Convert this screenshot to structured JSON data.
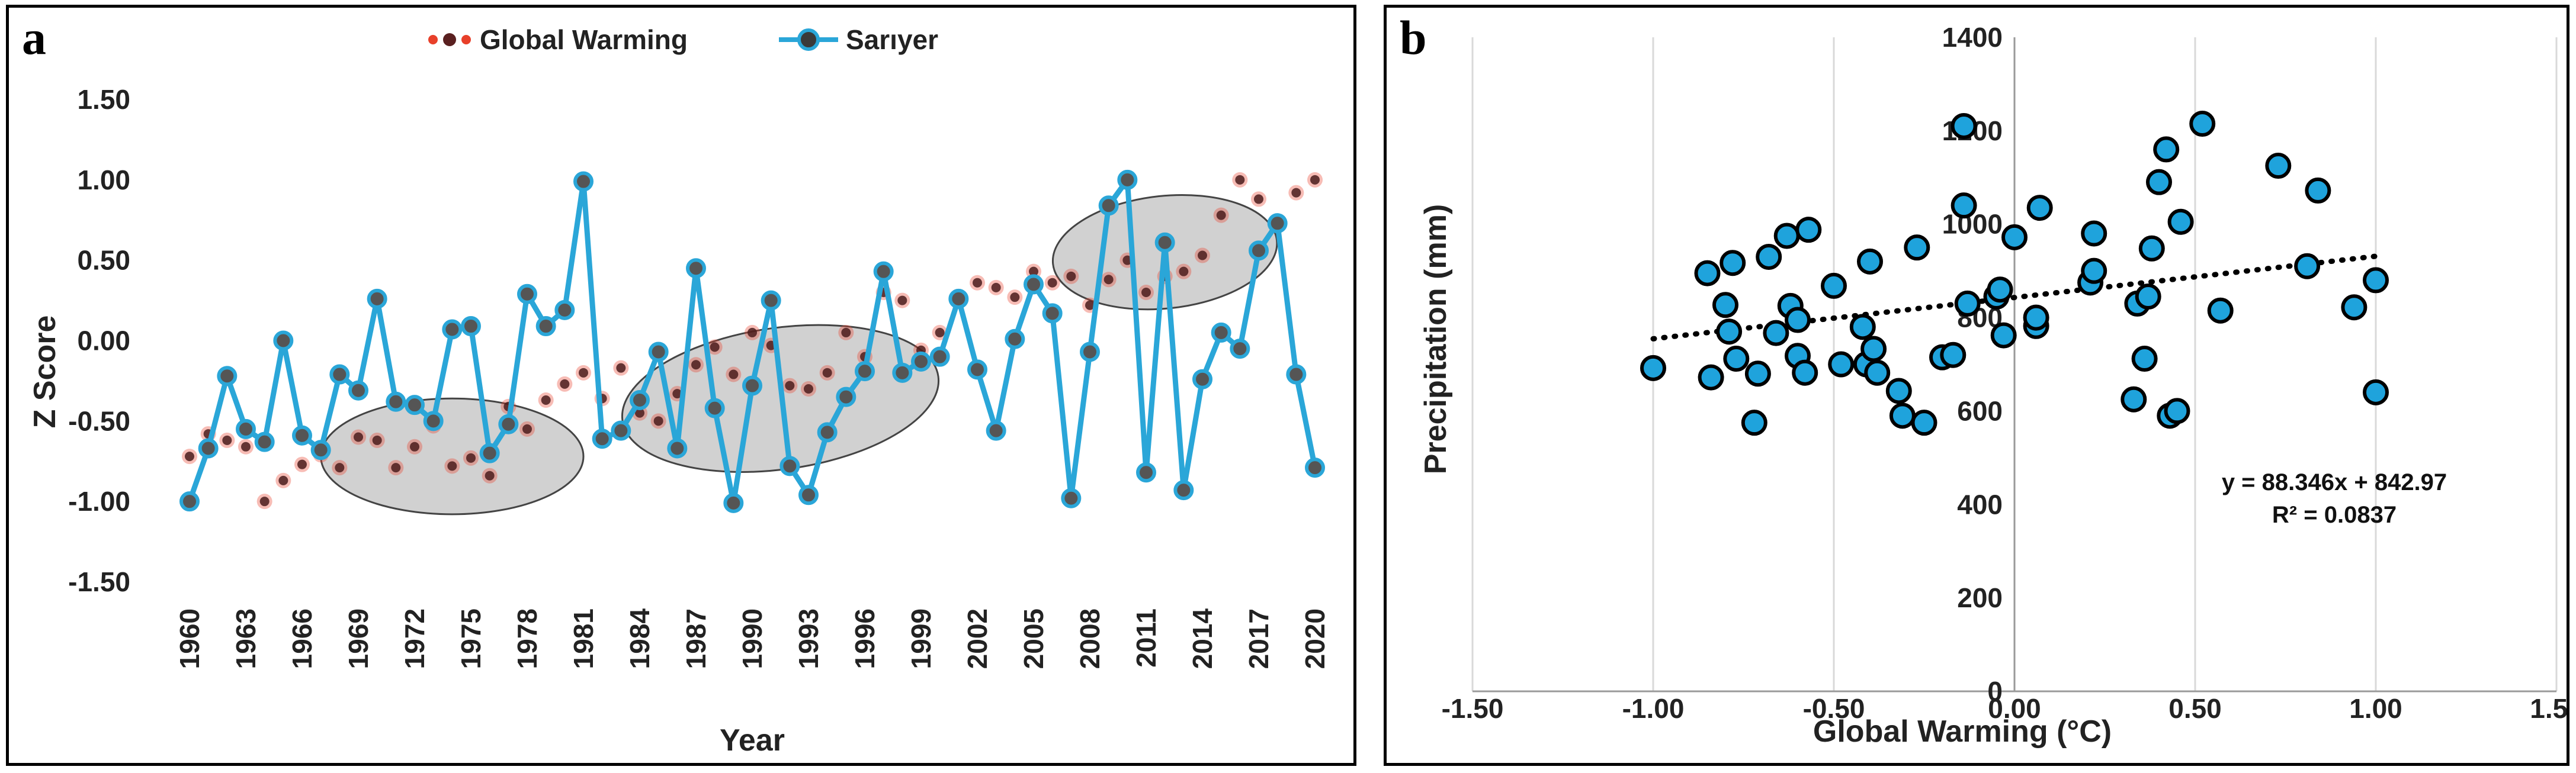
{
  "chart_data": [
    {
      "panel": "a",
      "type": "line",
      "xlabel": "Year",
      "ylabel": "Z Score",
      "ylim": [
        -1.5,
        1.5
      ],
      "yticks": [
        "1.50",
        "1.00",
        "0.50",
        "0.00",
        "-0.50",
        "-1.00",
        "-1.50"
      ],
      "ytick_values": [
        1.5,
        1.0,
        0.5,
        0.0,
        -0.5,
        -1.0,
        -1.5
      ],
      "xlim": [
        1960,
        2020
      ],
      "xticks": [
        "1960",
        "1963",
        "1966",
        "1969",
        "1972",
        "1975",
        "1978",
        "1981",
        "1984",
        "1987",
        "1990",
        "1993",
        "1996",
        "1999",
        "2002",
        "2005",
        "2008",
        "2011",
        "2014",
        "2017",
        "2020"
      ],
      "legend": [
        "Global Warming",
        "Sarıyer"
      ],
      "legend_position": "top-center",
      "years": [
        1960,
        1961,
        1962,
        1963,
        1964,
        1965,
        1966,
        1967,
        1968,
        1969,
        1970,
        1971,
        1972,
        1973,
        1974,
        1975,
        1976,
        1977,
        1978,
        1979,
        1980,
        1981,
        1982,
        1983,
        1984,
        1985,
        1986,
        1987,
        1988,
        1989,
        1990,
        1991,
        1992,
        1993,
        1994,
        1995,
        1996,
        1997,
        1998,
        1999,
        2000,
        2001,
        2002,
        2003,
        2004,
        2005,
        2006,
        2007,
        2008,
        2009,
        2010,
        2011,
        2012,
        2013,
        2014,
        2015,
        2016,
        2017,
        2018,
        2019,
        2020
      ],
      "series": [
        {
          "name": "Global Warming",
          "color": "#e8402a",
          "values": [
            -0.72,
            -0.58,
            -0.62,
            -0.66,
            -1.0,
            -0.87,
            -0.77,
            -0.71,
            -0.79,
            -0.6,
            -0.62,
            -0.79,
            -0.66,
            -0.53,
            -0.78,
            -0.73,
            -0.84,
            -0.41,
            -0.55,
            -0.37,
            -0.27,
            -0.2,
            -0.36,
            -0.17,
            -0.45,
            -0.5,
            -0.33,
            -0.15,
            -0.04,
            -0.21,
            0.05,
            -0.03,
            -0.28,
            -0.3,
            -0.2,
            0.05,
            -0.1,
            0.3,
            0.25,
            -0.06,
            0.05,
            0.27,
            0.36,
            0.33,
            0.27,
            0.43,
            0.36,
            0.4,
            0.22,
            0.38,
            0.5,
            0.3,
            0.4,
            0.43,
            0.53,
            0.78,
            1.0,
            0.88,
            0.72,
            0.92,
            1.0
          ]
        },
        {
          "name": "Sarıyer",
          "color": "#2aa6d8",
          "values": [
            -1.0,
            -0.67,
            -0.22,
            -0.55,
            -0.63,
            0.0,
            -0.59,
            -0.68,
            -0.21,
            -0.31,
            0.26,
            -0.38,
            -0.4,
            -0.5,
            0.07,
            0.09,
            -0.7,
            -0.52,
            0.29,
            0.09,
            0.19,
            0.99,
            -0.61,
            -0.56,
            -0.37,
            -0.07,
            -0.67,
            0.45,
            -0.42,
            -1.01,
            -0.28,
            0.25,
            -0.78,
            -0.96,
            -0.57,
            -0.35,
            -0.19,
            0.43,
            -0.2,
            -0.13,
            -0.1,
            0.26,
            -0.18,
            -0.56,
            0.01,
            0.35,
            0.17,
            -0.98,
            -0.07,
            0.84,
            1.0,
            -0.82,
            0.61,
            -0.93,
            -0.24,
            0.05,
            -0.05,
            0.56,
            0.73,
            -0.21,
            -0.79
          ]
        }
      ],
      "annotations": [
        "gray ellipse highlighting 1967-1981",
        "gray ellipse highlighting 1983-2000",
        "gray ellipse highlighting 2006-2018"
      ]
    },
    {
      "panel": "b",
      "type": "scatter",
      "xlabel": "Global Warming (°C)",
      "ylabel": "Precipitation (mm)",
      "xlim": [
        -1.5,
        1.5
      ],
      "ylim": [
        0,
        1400
      ],
      "xticks": [
        "-1.50",
        "-1.00",
        "-0.50",
        "0.00",
        "0.50",
        "1.00",
        "1.50"
      ],
      "xtick_values": [
        -1.5,
        -1.0,
        -0.5,
        0.0,
        0.5,
        1.0,
        1.5
      ],
      "yticks": [
        "0",
        "200",
        "400",
        "600",
        "800",
        "1000",
        "1200",
        "1400"
      ],
      "ytick_values": [
        0,
        200,
        400,
        600,
        800,
        1000,
        1200,
        1400
      ],
      "grid": true,
      "points": [
        [
          -1.0,
          692
        ],
        [
          -0.85,
          895
        ],
        [
          -0.84,
          672
        ],
        [
          -0.8,
          827
        ],
        [
          -0.79,
          770
        ],
        [
          -0.78,
          917
        ],
        [
          -0.77,
          712
        ],
        [
          -0.72,
          575
        ],
        [
          -0.71,
          680
        ],
        [
          -0.68,
          930
        ],
        [
          -0.66,
          767
        ],
        [
          -0.63,
          975
        ],
        [
          -0.62,
          825
        ],
        [
          -0.6,
          718
        ],
        [
          -0.6,
          795
        ],
        [
          -0.58,
          682
        ],
        [
          -0.57,
          988
        ],
        [
          -0.5,
          868
        ],
        [
          -0.48,
          700
        ],
        [
          -0.42,
          780
        ],
        [
          -0.41,
          700
        ],
        [
          -0.4,
          920
        ],
        [
          -0.39,
          733
        ],
        [
          -0.38,
          682
        ],
        [
          -0.32,
          643
        ],
        [
          -0.31,
          590
        ],
        [
          -0.27,
          950
        ],
        [
          -0.25,
          575
        ],
        [
          -0.2,
          715
        ],
        [
          -0.17,
          720
        ],
        [
          -0.14,
          1210
        ],
        [
          -0.14,
          1040
        ],
        [
          -0.13,
          830
        ],
        [
          -0.05,
          845
        ],
        [
          -0.04,
          860
        ],
        [
          -0.03,
          762
        ],
        [
          0.0,
          972
        ],
        [
          0.06,
          782
        ],
        [
          0.06,
          800
        ],
        [
          0.07,
          1035
        ],
        [
          0.21,
          875
        ],
        [
          0.22,
          980
        ],
        [
          0.22,
          900
        ],
        [
          0.33,
          625
        ],
        [
          0.34,
          830
        ],
        [
          0.36,
          712
        ],
        [
          0.37,
          845
        ],
        [
          0.38,
          948
        ],
        [
          0.4,
          1090
        ],
        [
          0.42,
          1160
        ],
        [
          0.43,
          590
        ],
        [
          0.45,
          600
        ],
        [
          0.46,
          1005
        ],
        [
          0.52,
          1215
        ],
        [
          0.57,
          815
        ],
        [
          0.73,
          1125
        ],
        [
          0.81,
          910
        ],
        [
          0.84,
          1072
        ],
        [
          0.94,
          822
        ],
        [
          1.0,
          640
        ],
        [
          1.0,
          880
        ]
      ],
      "trendline": {
        "slope": 88.346,
        "intercept": 842.97,
        "x_range": [
          -1.0,
          1.0
        ],
        "style": "dotted"
      },
      "equation": "y = 88.346x + 842.97",
      "r2": "R² = 0.0837"
    }
  ],
  "labels": {
    "panel_a": "a",
    "panel_b": "b"
  }
}
